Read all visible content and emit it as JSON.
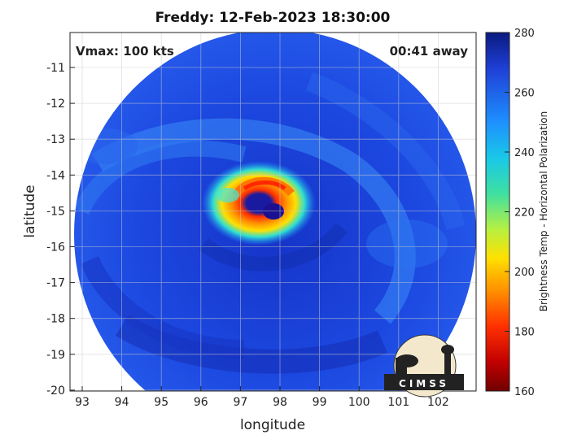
{
  "title": "Freddy: 12-Feb-2023 18:30:00",
  "vmax_label": "Vmax: 100 kts",
  "away_label": "00:41 away",
  "axes": {
    "xlabel": "longitude",
    "ylabel": "latitude",
    "xticks": [
      "93",
      "94",
      "95",
      "96",
      "97",
      "98",
      "99",
      "100",
      "101",
      "102"
    ],
    "yticks": [
      "-11",
      "-12",
      "-13",
      "-14",
      "-15",
      "-16",
      "-17",
      "-18",
      "-19",
      "-20"
    ]
  },
  "colorbar": {
    "label": "Brightness Temp - Horizontal Polarization",
    "ticks": [
      "280",
      "260",
      "240",
      "220",
      "200",
      "180",
      "160"
    ],
    "colors": [
      "#0a1a80",
      "#1f3fd6",
      "#1e90ff",
      "#19c8e8",
      "#3fe0a0",
      "#b8f040",
      "#ffe000",
      "#ff9000",
      "#ff3000",
      "#c00000",
      "#700000"
    ]
  },
  "logo": {
    "text": "CIMSS"
  }
}
